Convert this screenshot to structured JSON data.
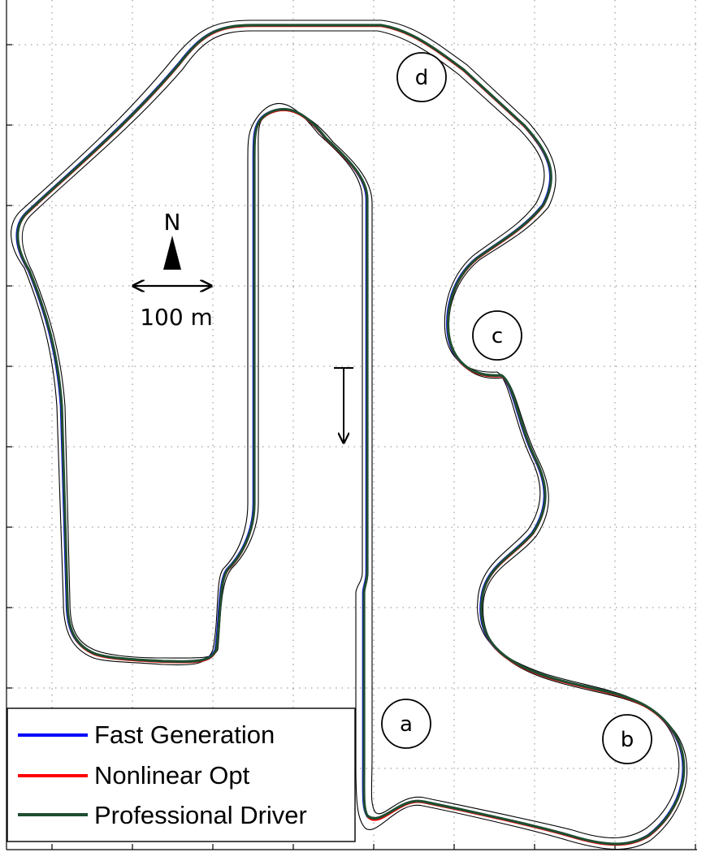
{
  "map": {
    "north_label": "N",
    "scale_label": "100 m",
    "colors": {
      "fast_generation": "#0000ff",
      "nonlinear_opt": "#ff0000",
      "professional_driver": "#1f4e32",
      "boundary": "#000000"
    },
    "corners": [
      {
        "id": "a",
        "label": "a"
      },
      {
        "id": "b",
        "label": "b"
      },
      {
        "id": "c",
        "label": "c"
      },
      {
        "id": "d",
        "label": "d"
      }
    ]
  },
  "legend": {
    "items": [
      {
        "label": "Fast Generation",
        "color": "#0000ff"
      },
      {
        "label": "Nonlinear Opt",
        "color": "#ff0000"
      },
      {
        "label": "Professional Driver",
        "color": "#1f4e32"
      }
    ]
  }
}
